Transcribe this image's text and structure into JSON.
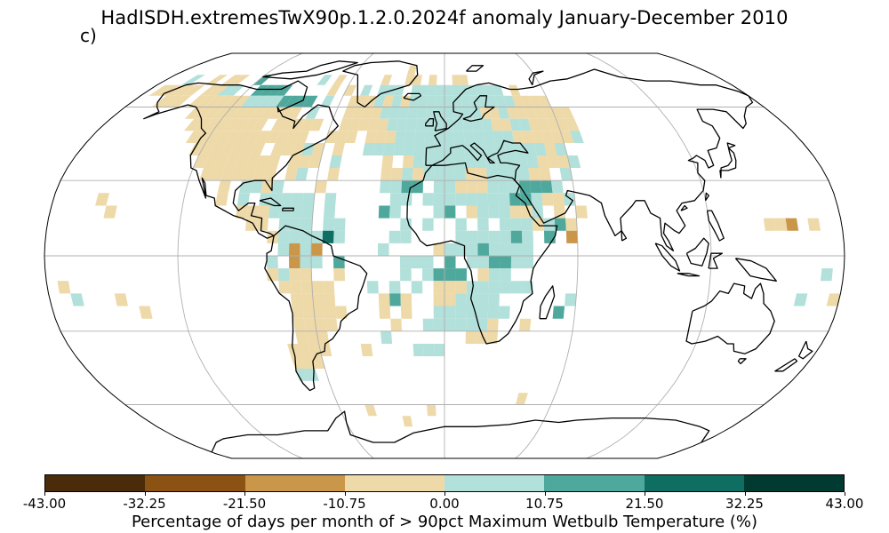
{
  "title": "HadISDH.extremesTwX90p.1.2.0.2024f anomaly January-December 2010",
  "panel_label": "c)",
  "colorbar": {
    "label": "Percentage of days per month of > 90pct Maximum Wetbulb Temperature (%)",
    "ticks": [
      "-43.00",
      "-32.25",
      "-21.50",
      "-10.75",
      "0.00",
      "10.75",
      "21.50",
      "32.25",
      "43.00"
    ],
    "colors": [
      "#4a2c0a",
      "#8c5214",
      "#c9964a",
      "#eed9a8",
      "#b2e0da",
      "#4fa89c",
      "#0f6e62",
      "#003a30"
    ]
  },
  "map": {
    "projection": "Robinson",
    "grid_color": "#b0b0b0",
    "coastline_color": "#000000",
    "cell_size_deg": 5,
    "legend_classes": [
      {
        "range": "-43.00 to -32.25",
        "color": "#4a2c0a"
      },
      {
        "range": "-32.25 to -21.50",
        "color": "#8c5214"
      },
      {
        "range": "-21.50 to -10.75",
        "color": "#c9964a"
      },
      {
        "range": "-10.75 to 0.00",
        "color": "#eed9a8"
      },
      {
        "range": "0.00 to 10.75",
        "color": "#b2e0da"
      },
      {
        "range": "10.75 to 21.50",
        "color": "#4fa89c"
      },
      {
        "range": "21.50 to 32.25",
        "color": "#0f6e62"
      },
      {
        "range": "32.25 to 43.00",
        "color": "#003a30"
      }
    ]
  }
}
